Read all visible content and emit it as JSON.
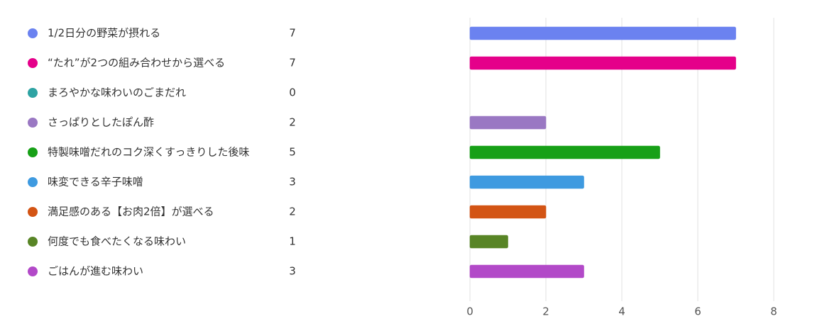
{
  "chart_data": {
    "type": "bar",
    "orientation": "horizontal",
    "categories": [
      "1/2日分の野菜が摂れる",
      "“たれ”が2つの組み合わせから選べる",
      "まろやかな味わいのごまだれ",
      "さっぱりとしたぽん酢",
      "特製味噌だれのコク深くすっきりした後味",
      "味変できる辛子味噌",
      "満足感のある【お肉2倍】が選べる",
      "何度でも食べたくなる味わい",
      "ごはんが進む味わい"
    ],
    "values": [
      7,
      7,
      0,
      2,
      5,
      3,
      2,
      1,
      3
    ],
    "colors": [
      "#6b82f0",
      "#e5008a",
      "#2ea3a3",
      "#9a78c3",
      "#17a017",
      "#3e9ae0",
      "#d35414",
      "#588526",
      "#b249c8"
    ],
    "xlim": [
      0,
      8
    ],
    "xticks": [
      0,
      2,
      4,
      6,
      8
    ],
    "grid": true
  }
}
